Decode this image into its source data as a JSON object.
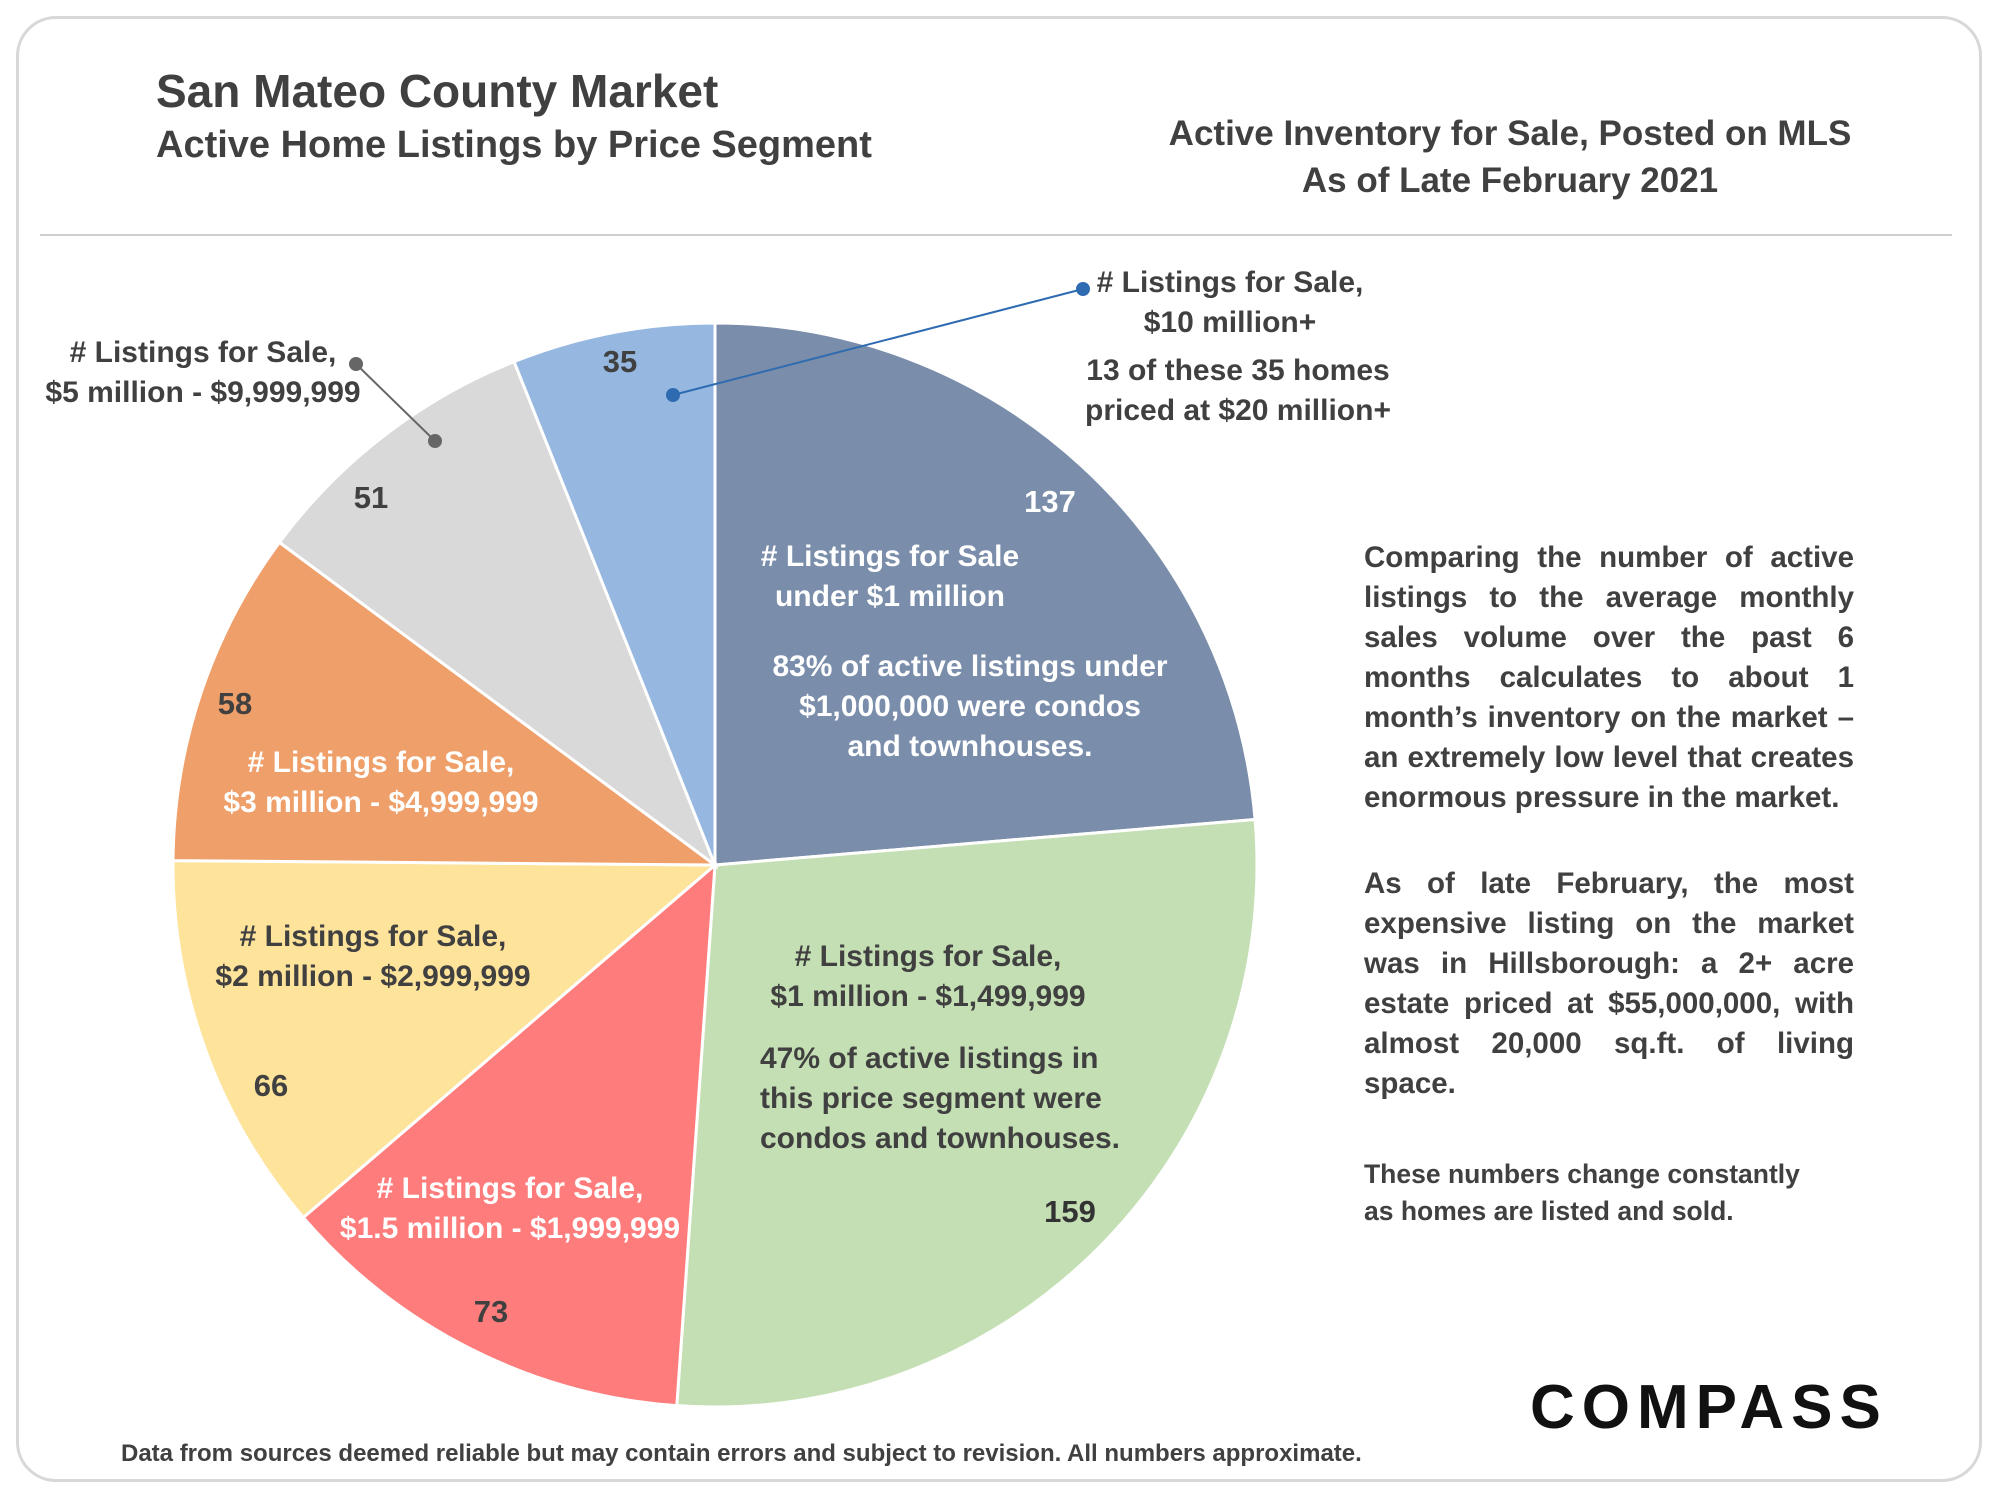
{
  "header": {
    "title": "San Mateo County Market",
    "subtitle": "Active Home Listings by Price Segment",
    "note_line1": "Active Inventory for Sale, Posted on MLS",
    "note_line2": "As of Late February 2021"
  },
  "chart_data": {
    "type": "pie",
    "slices": [
      {
        "label": [
          "# Listings for Sale",
          "under $1 million"
        ],
        "value": 137,
        "color": "#7a8daa",
        "note": [
          "83% of active listings under",
          "$1,000,000 were condos",
          "and townhouses."
        ]
      },
      {
        "label": [
          "# Listings for Sale,",
          "$1 million - $1,499,999"
        ],
        "value": 159,
        "color": "#c5dfb5",
        "note": [
          "47% of active listings in",
          "this price segment were",
          "condos and townhouses."
        ]
      },
      {
        "label": [
          "# Listings for Sale,",
          "$1.5 million - $1,999,999"
        ],
        "value": 73,
        "color": "#ff7c7c"
      },
      {
        "label": [
          "# Listings for Sale,",
          "$2 million - $2,999,999"
        ],
        "value": 66,
        "color": "#fee39b"
      },
      {
        "label": [
          "# Listings for Sale,",
          "$3 million - $4,999,999"
        ],
        "value": 58,
        "color": "#ef9f69"
      },
      {
        "label": [
          "# Listings for Sale,",
          "$5 million - $9,999,999"
        ],
        "value": 51,
        "color": "#d9d9d9"
      },
      {
        "label": [
          "# Listings for Sale,",
          "$10 million+"
        ],
        "value": 35,
        "color": "#95b7e0",
        "note": [
          "13 of these 35 homes",
          "priced at $20 million+"
        ]
      }
    ]
  },
  "side_notes": {
    "para1": "Comparing the number of active listings to the average monthly sales volume over the past 6 months calculates to about 1 month’s inventory on the market – an extremely low level that creates enormous pressure in the market.",
    "para2": "As of late February, the most expensive listing on the market was in Hillsborough: a 2+ acre estate priced at $55,000,000, with almost 20,000 sq.ft. of living space.",
    "para3_line1": "These numbers change constantly",
    "para3_line2": "as homes are listed and sold."
  },
  "footer": "Data from sources deemed reliable but may contain errors and subject to revision. All numbers approximate.",
  "logo": "COMPASS"
}
